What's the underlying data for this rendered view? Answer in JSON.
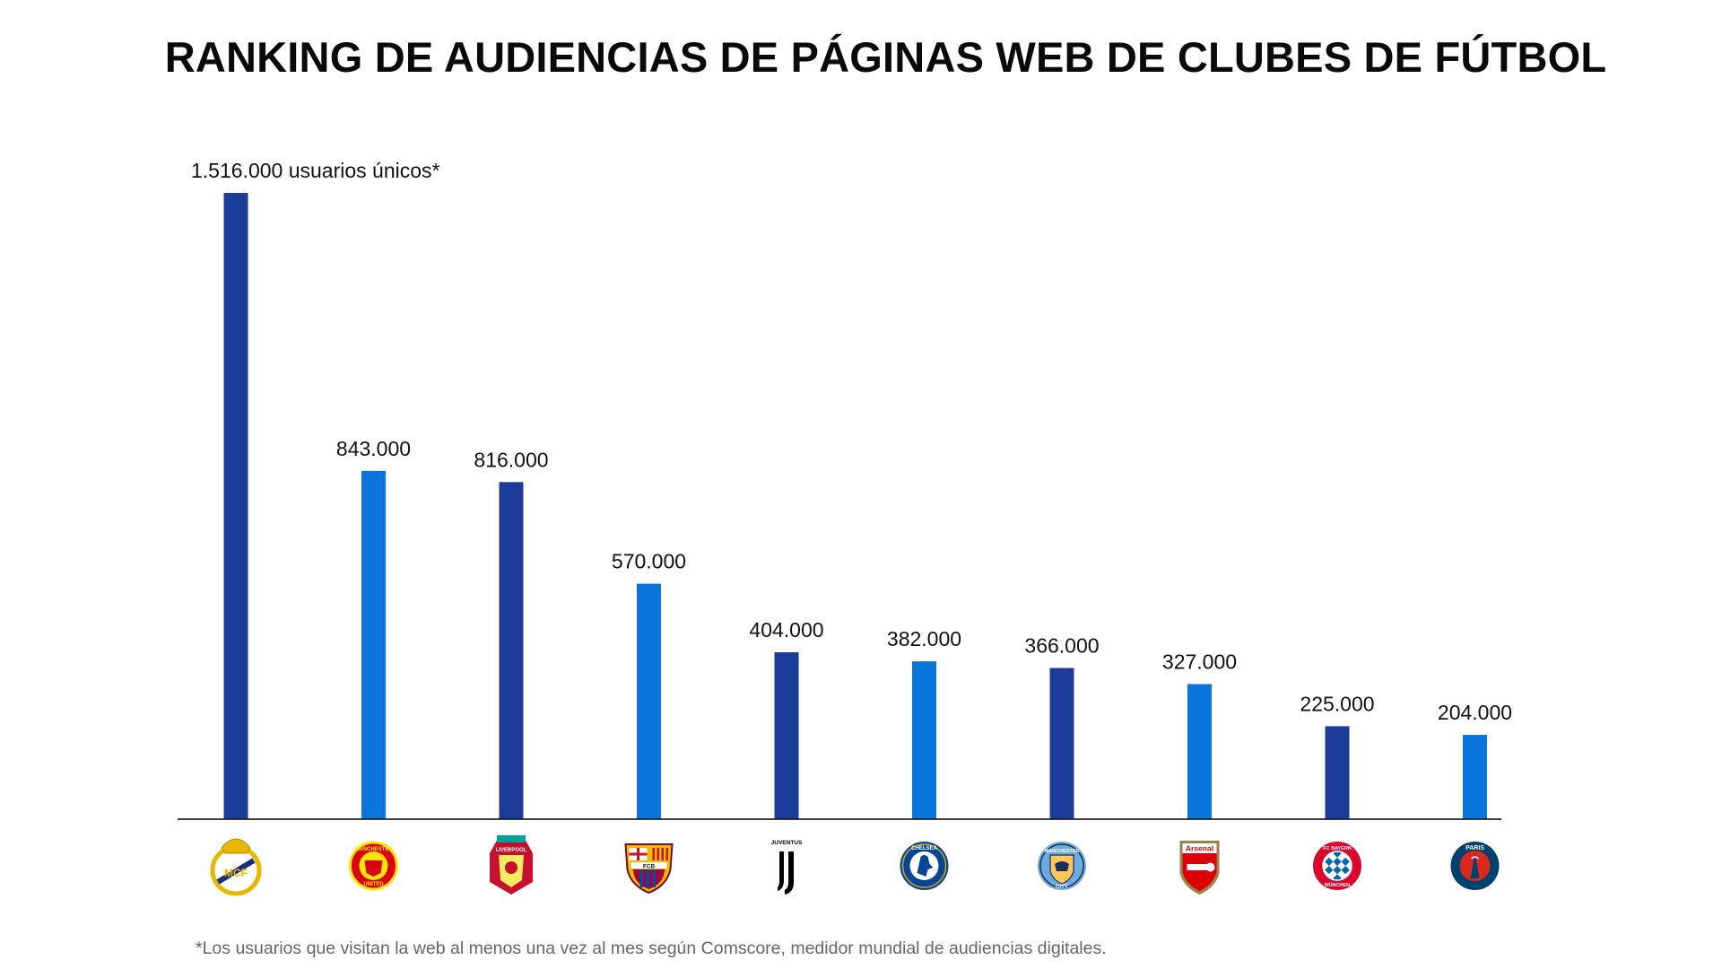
{
  "chart_data": {
    "type": "bar",
    "title": "RANKING DE AUDIENCIAS DE PÁGINAS WEB DE CLUBES DE FÚTBOL",
    "categories": [
      "Real Madrid",
      "Manchester United",
      "Liverpool",
      "FC Barcelona",
      "Juventus",
      "Chelsea",
      "Manchester City",
      "Arsenal",
      "FC Bayern München",
      "Paris Saint-Germain"
    ],
    "values": [
      1516000,
      843000,
      816000,
      570000,
      404000,
      382000,
      366000,
      327000,
      225000,
      204000
    ],
    "value_labels": [
      "1.516.000 usuarios únicos*",
      "843.000",
      "816.000",
      "570.000",
      "404.000",
      "382.000",
      "366.000",
      "327.000",
      "225.000",
      "204.000"
    ],
    "logos": [
      {
        "name": "real-madrid-logo",
        "text": "",
        "colors": [
          "#ffffff",
          "#e8b800",
          "#1c2d7a"
        ]
      },
      {
        "name": "manchester-united-logo",
        "text": "MANCHESTER UNITED",
        "colors": [
          "#da020e",
          "#ffe500",
          "#111111"
        ]
      },
      {
        "name": "liverpool-logo",
        "text": "LIVERPOOL",
        "colors": [
          "#c8102e",
          "#00a398",
          "#f6eb61"
        ]
      },
      {
        "name": "fc-barcelona-logo",
        "text": "FCB",
        "colors": [
          "#a50044",
          "#004d98",
          "#edbb00"
        ]
      },
      {
        "name": "juventus-logo",
        "text": "JUVENTUS",
        "colors": [
          "#000000",
          "#ffffff"
        ]
      },
      {
        "name": "chelsea-logo",
        "text": "CHELSEA FOOTBALL CLUB",
        "colors": [
          "#034694",
          "#dba111",
          "#ffffff"
        ]
      },
      {
        "name": "manchester-city-logo",
        "text": "MANCHESTER CITY",
        "colors": [
          "#6cabdd",
          "#1c2c5b",
          "#ffc659"
        ]
      },
      {
        "name": "arsenal-logo",
        "text": "Arsenal",
        "colors": [
          "#db0007",
          "#9c824a",
          "#ffffff"
        ]
      },
      {
        "name": "bayern-munchen-logo",
        "text": "FC BAYERN MÜNCHEN",
        "colors": [
          "#dc052d",
          "#0066b2",
          "#ffffff"
        ]
      },
      {
        "name": "psg-logo",
        "text": "PARIS",
        "colors": [
          "#004170",
          "#da291c",
          "#ffffff"
        ]
      }
    ],
    "ylim": [
      0,
      1516000
    ],
    "grid": false,
    "legend": "none",
    "colors": {
      "dark_bar": "#1c3c9a",
      "light_bar": "#0a74dd",
      "axis": "#222222"
    }
  },
  "footnote": "*Los usuarios que visitan la web al menos una vez al mes según Comscore, medidor mundial de audiencias digitales."
}
